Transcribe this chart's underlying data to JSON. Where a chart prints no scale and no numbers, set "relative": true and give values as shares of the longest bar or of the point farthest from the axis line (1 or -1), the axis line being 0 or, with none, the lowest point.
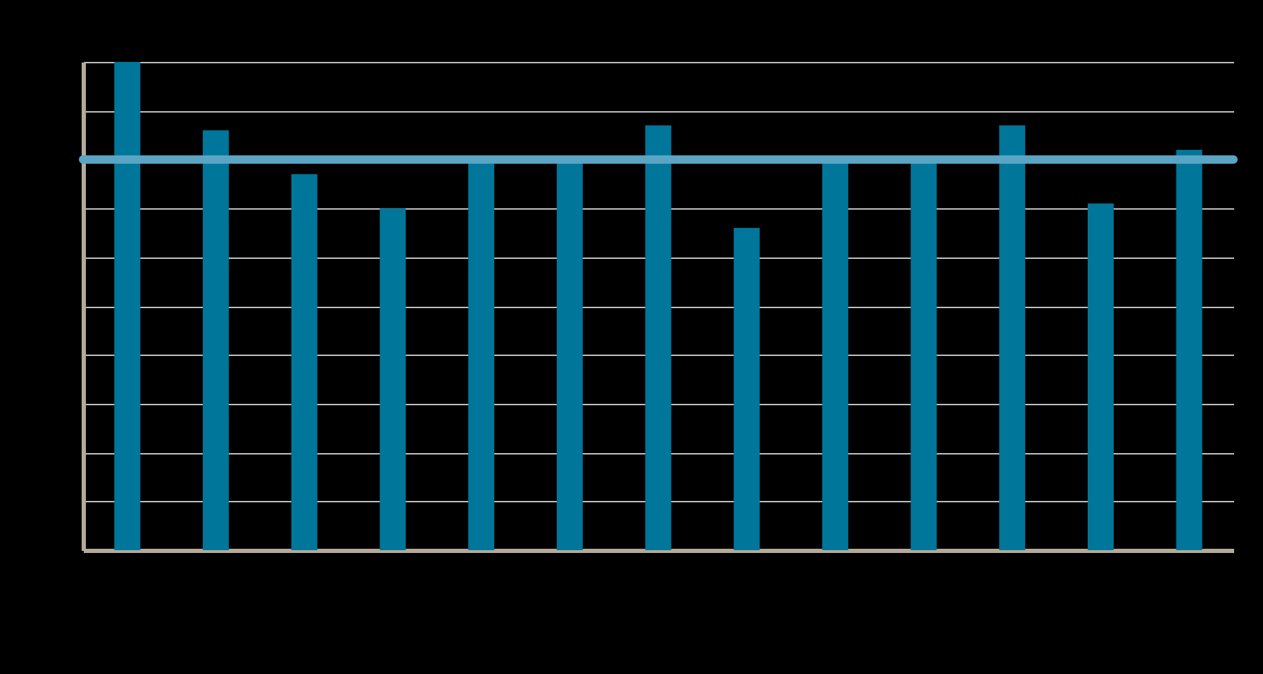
{
  "chart_data": {
    "type": "bar",
    "relative": true,
    "categories": [
      null,
      null,
      null,
      null,
      null,
      null,
      null,
      null,
      null,
      null,
      null,
      null,
      null
    ],
    "values": [
      1,
      0.86,
      0.77,
      0.7,
      0.8,
      0.8,
      0.87,
      0.66,
      0.8,
      0.8,
      0.87,
      0.71,
      0.82
    ],
    "color": "#00769a",
    "ref_lines": [
      {
        "axis": "y",
        "value": 0.8,
        "color": "#5aa5c4"
      }
    ],
    "grid": "y"
  }
}
